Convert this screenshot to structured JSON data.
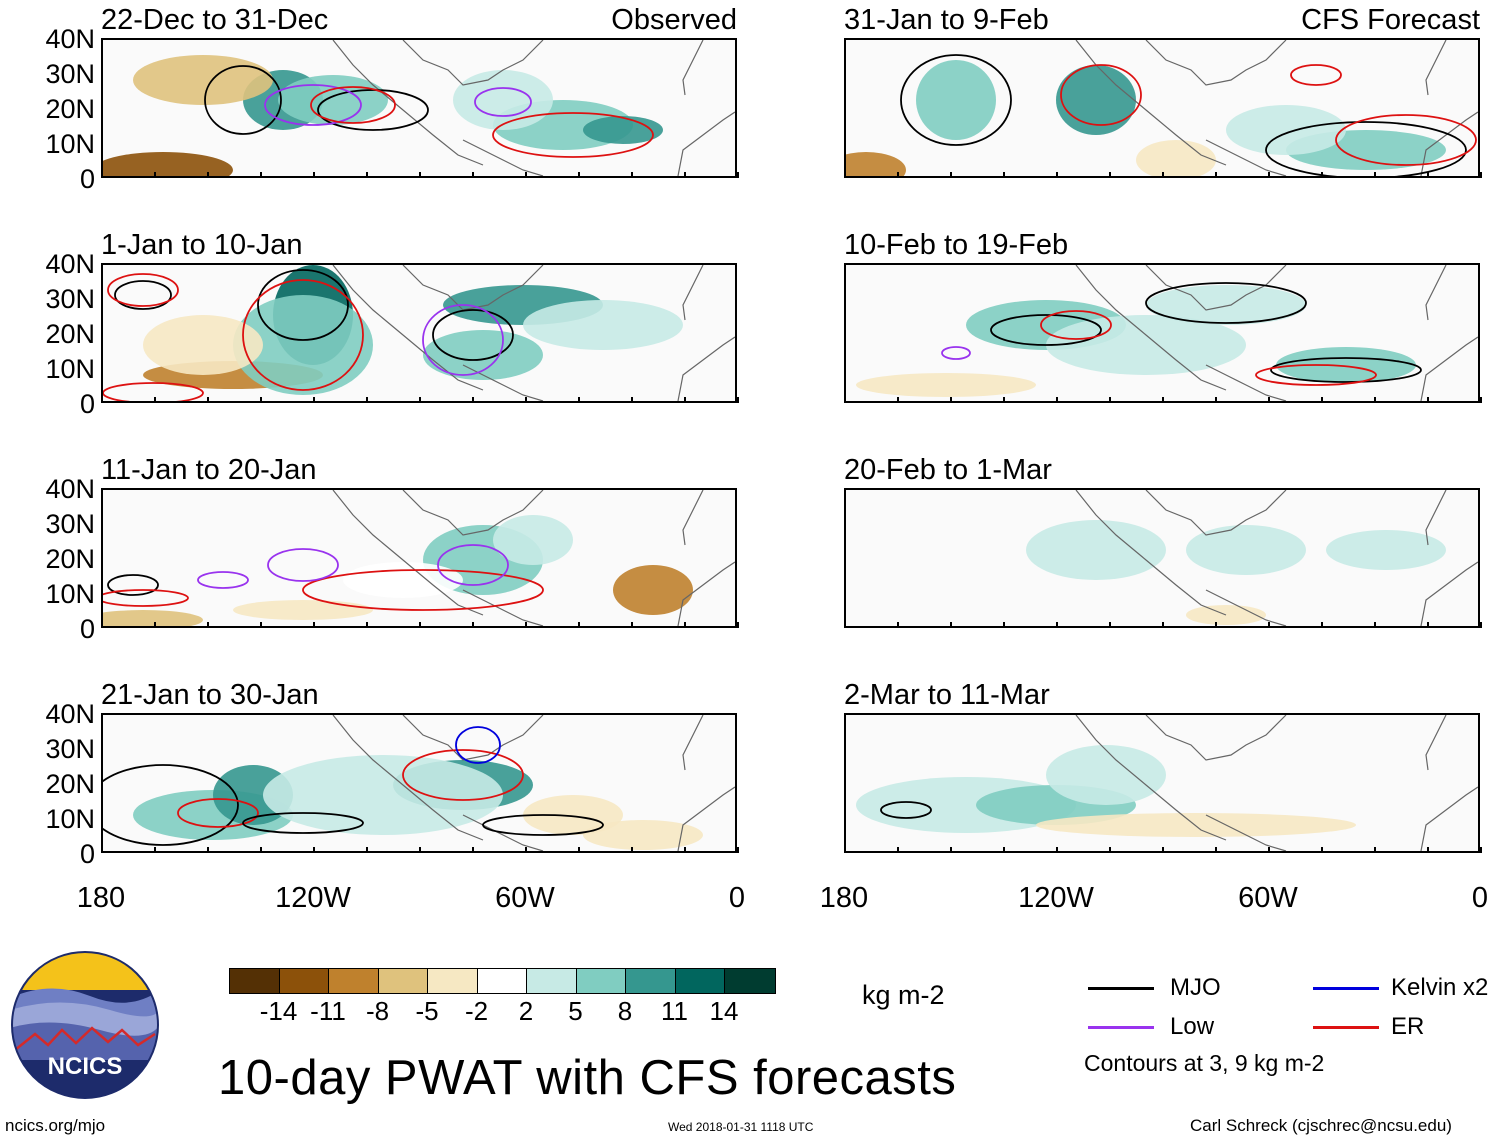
{
  "panels": [
    {
      "title": "22-Dec to 31-Dec",
      "tag": "Observed"
    },
    {
      "title": "1-Jan to 10-Jan",
      "tag": ""
    },
    {
      "title": "11-Jan to 20-Jan",
      "tag": ""
    },
    {
      "title": "21-Jan to 30-Jan",
      "tag": ""
    },
    {
      "title": "31-Jan to 9-Feb",
      "tag": "CFS Forecast"
    },
    {
      "title": "10-Feb to 19-Feb",
      "tag": ""
    },
    {
      "title": "20-Feb to 1-Mar",
      "tag": ""
    },
    {
      "title": "2-Mar to 11-Mar",
      "tag": ""
    }
  ],
  "y_ticks": [
    "40N",
    "30N",
    "20N",
    "10N",
    "0"
  ],
  "x_ticks": [
    "180",
    "120W",
    "60W",
    "0"
  ],
  "colorbar": {
    "colors": [
      "#543005",
      "#8c510a",
      "#bf812d",
      "#dfc27d",
      "#f6e8c3",
      "#ffffff",
      "#c7eae5",
      "#80cdc1",
      "#35978f",
      "#01665e",
      "#003c30"
    ],
    "labels": [
      "-14",
      "-11",
      "-8",
      "-5",
      "-2",
      "2",
      "5",
      "8",
      "11",
      "14"
    ],
    "units": "kg m-2"
  },
  "legend": [
    {
      "label": "MJO",
      "color": "#000000"
    },
    {
      "label": "Kelvin x2",
      "color": "#0000dd"
    },
    {
      "label": "Low",
      "color": "#9933ee"
    },
    {
      "label": "ER",
      "color": "#dd1111"
    }
  ],
  "contours_note": "Contours at 3, 9 kg m-2",
  "main_title": "10-day PWAT with CFS forecasts",
  "logo_text": "NCICS",
  "footer": {
    "url": "ncics.org/mjo",
    "timestamp": "Wed 2018-01-31 1118 UTC",
    "author": "Carl Schreck (cjschrec@ncsu.edu)"
  }
}
